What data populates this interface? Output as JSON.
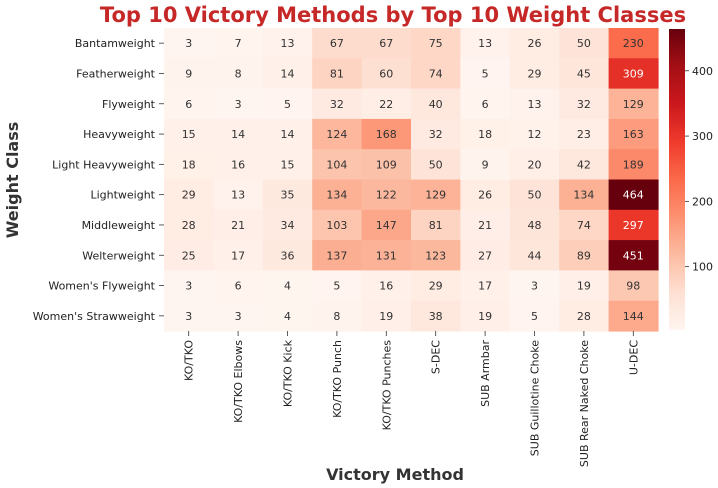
{
  "chart_data": {
    "type": "heatmap",
    "title": "Top 10 Victory Methods by Top 10 Weight Classes",
    "xlabel": "Victory Method",
    "ylabel": "Weight Class",
    "title_color": "#c62828",
    "rows": [
      "Bantamweight",
      "Featherweight",
      "Flyweight",
      "Heavyweight",
      "Light Heavyweight",
      "Lightweight",
      "Middleweight",
      "Welterweight",
      "Women's Flyweight",
      "Women's Strawweight"
    ],
    "columns": [
      "KO/TKO",
      "KO/TKO Elbows",
      "KO/TKO Kick",
      "KO/TKO Punch",
      "KO/TKO Punches",
      "S-DEC",
      "SUB Armbar",
      "SUB Guillotine Choke",
      "SUB Rear Naked Choke",
      "U-DEC"
    ],
    "values": [
      [
        3,
        7,
        13,
        67,
        67,
        75,
        13,
        26,
        50,
        230
      ],
      [
        9,
        8,
        14,
        81,
        60,
        74,
        5,
        29,
        45,
        309
      ],
      [
        6,
        3,
        5,
        32,
        22,
        40,
        6,
        13,
        32,
        129
      ],
      [
        15,
        14,
        14,
        124,
        168,
        32,
        18,
        12,
        23,
        163
      ],
      [
        18,
        16,
        15,
        104,
        109,
        50,
        9,
        20,
        42,
        189
      ],
      [
        29,
        13,
        35,
        134,
        122,
        129,
        26,
        50,
        134,
        464
      ],
      [
        28,
        21,
        34,
        103,
        147,
        81,
        21,
        48,
        74,
        297
      ],
      [
        25,
        17,
        36,
        137,
        131,
        123,
        27,
        44,
        89,
        451
      ],
      [
        3,
        6,
        4,
        5,
        16,
        29,
        17,
        3,
        19,
        98
      ],
      [
        3,
        3,
        4,
        8,
        19,
        38,
        19,
        5,
        28,
        144
      ]
    ],
    "colormap": "Reds",
    "vmin": 3,
    "vmax": 464,
    "colorbar_ticks": [
      100,
      200,
      300,
      400
    ]
  }
}
